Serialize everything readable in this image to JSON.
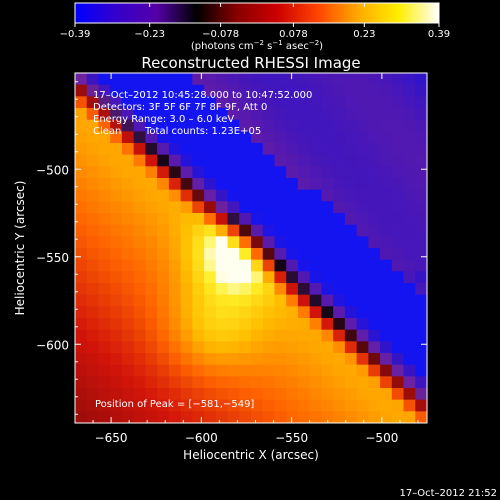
{
  "chart_data": {
    "type": "heatmap",
    "title": "Reconstructed RHESSI Image",
    "xlabel": "Heliocentric X (arcsec)",
    "ylabel": "Heliocentric Y (arcsec)",
    "xlim": [
      -670,
      -475
    ],
    "ylim": [
      -645,
      -445
    ],
    "x_ticks": [
      -650,
      -600,
      -550,
      -500
    ],
    "x_tick_labels": [
      "−650",
      "−600",
      "−550",
      "−500"
    ],
    "y_ticks": [
      -500,
      -550,
      -600
    ],
    "y_tick_labels": [
      "−500",
      "−550",
      "−600"
    ],
    "colorbar": {
      "range": [
        -0.39,
        0.39
      ],
      "ticks": [
        -0.39,
        -0.23,
        -0.078,
        0.078,
        0.23,
        0.39
      ],
      "tick_labels": [
        "−0.39",
        "−0.23",
        "−0.078",
        "0.078",
        "0.23",
        "0.39"
      ],
      "units": "(photons cm",
      "units_exp1": "−2",
      "units_mid": " s",
      "units_exp2": "−1",
      "units_end": " asec",
      "units_exp3": "−2",
      "units_close": ")",
      "colors": [
        "#0000ff",
        "#3300cc",
        "#5500aa",
        "#000000",
        "#880000",
        "#cc0000",
        "#ff4400",
        "#ffaa00",
        "#ffee00",
        "#ffffff"
      ]
    },
    "annotations": {
      "time_range": "17–Oct–2012 10:45:28.000 to 10:47:52.000",
      "detectors": "Detectors: 3F 5F 6F 7F 8F 9F, Att 0",
      "energy": "Energy Range: 3.0 – 6.0 keV",
      "clean_label": "Clean",
      "total_counts": "Total counts: 1.23E+05",
      "peak": "Position of Peak = [−581,−549]"
    },
    "peak_position": [
      -581,
      -549
    ],
    "footer_timestamp": "17–Oct–2012 21:52"
  }
}
